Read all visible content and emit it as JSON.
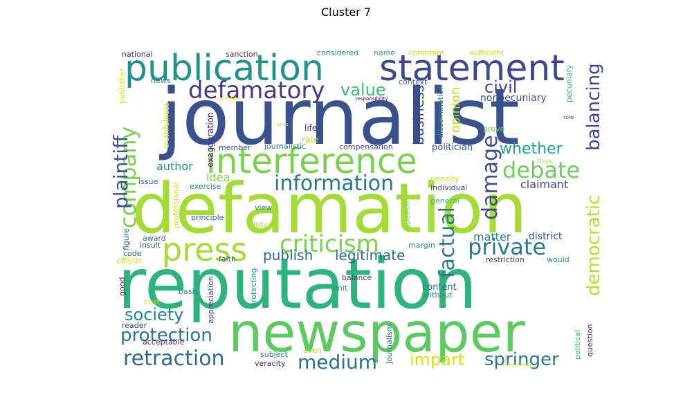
{
  "chart_data": {
    "type": "wordcloud",
    "title": "Cluster 7",
    "colormap": "viridis",
    "words": [
      {
        "text": "journalist",
        "color": "#3b518b"
      },
      {
        "text": "defamation",
        "color": "#a5db36"
      },
      {
        "text": "reputation",
        "color": "#2eb37c"
      },
      {
        "text": "newspaper",
        "color": "#5ec962"
      },
      {
        "text": "publication",
        "color": "#21918c"
      },
      {
        "text": "statement",
        "color": "#3e4989"
      },
      {
        "text": "interference",
        "color": "#7ad151"
      },
      {
        "text": "press",
        "color": "#a5db36"
      },
      {
        "text": "defamatory",
        "color": "#443983"
      },
      {
        "text": "criticism",
        "color": "#7ad151"
      },
      {
        "text": "information",
        "color": "#2a788e"
      },
      {
        "text": "debate",
        "color": "#6ccd5a"
      },
      {
        "text": "private",
        "color": "#2a788e"
      },
      {
        "text": "company",
        "color": "#7ad151"
      },
      {
        "text": "plaintiff",
        "color": "#3b528b"
      },
      {
        "text": "damage",
        "color": "#3e4a89"
      },
      {
        "text": "factual",
        "color": "#2a788e"
      },
      {
        "text": "balancing",
        "color": "#3e4989"
      },
      {
        "text": "democratic",
        "color": "#b5de2b"
      },
      {
        "text": "retraction",
        "color": "#31688e"
      },
      {
        "text": "medium",
        "color": "#2c728e"
      },
      {
        "text": "society",
        "color": "#26828e"
      },
      {
        "text": "protection",
        "color": "#2c728e"
      },
      {
        "text": "springer",
        "color": "#2a788e"
      },
      {
        "text": "impart",
        "color": "#d0e11c"
      },
      {
        "text": "value",
        "color": "#3fbc73"
      },
      {
        "text": "civil",
        "color": "#3e4989"
      },
      {
        "text": "whether",
        "color": "#21a685"
      },
      {
        "text": "legitimate",
        "color": "#31688e"
      },
      {
        "text": "publish",
        "color": "#31688e"
      },
      {
        "text": "business",
        "color": "#414487"
      },
      {
        "text": "opinion",
        "color": "#b5de2b"
      },
      {
        "text": "claimant",
        "color": "#3e4989"
      },
      {
        "text": "matter",
        "color": "#25858e"
      },
      {
        "text": "author",
        "color": "#21918c"
      },
      {
        "text": "idea",
        "color": "#7ad151"
      },
      {
        "text": "nonpecuniary",
        "color": "#3b528b"
      },
      {
        "text": "district",
        "color": "#3b528b"
      },
      {
        "text": "context",
        "color": "#31688e"
      },
      {
        "text": "content",
        "color": "#2c728e"
      },
      {
        "text": "politician",
        "color": "#3b528b"
      },
      {
        "text": "compensation",
        "color": "#3e4989"
      },
      {
        "text": "dissemination",
        "color": "#2a788e"
      },
      {
        "text": "considered",
        "color": "#21918c"
      },
      {
        "text": "name",
        "color": "#21a685"
      },
      {
        "text": "comment",
        "color": "#d0e11c"
      },
      {
        "text": "sufficient",
        "color": "#d0e11c"
      },
      {
        "text": "national",
        "color": "#482878"
      },
      {
        "text": "sanction",
        "color": "#482878"
      },
      {
        "text": "publisher",
        "color": "#d0e11c"
      },
      {
        "text": "news",
        "color": "#2a788e"
      },
      {
        "text": "truthfulness",
        "color": "#d0e11c"
      },
      {
        "text": "exaggeration",
        "color": "#482878"
      },
      {
        "text": "life",
        "color": "#482878"
      },
      {
        "text": "rate",
        "color": "#b5de2b"
      },
      {
        "text": "member",
        "color": "#3b528b"
      },
      {
        "text": "journalistic",
        "color": "#2a788e"
      },
      {
        "text": "prove",
        "color": "#7ad151"
      },
      {
        "text": "thus",
        "color": "#b5de2b"
      },
      {
        "text": "role",
        "color": "#3e4989"
      },
      {
        "text": "plus",
        "color": "#d0e11c"
      },
      {
        "text": "responsibility",
        "color": "#440154"
      },
      {
        "text": "confidence",
        "color": "#fde725"
      },
      {
        "text": "pecuniary",
        "color": "#35b779"
      },
      {
        "text": "issue",
        "color": "#31688e"
      },
      {
        "text": "exercise",
        "color": "#21918c"
      },
      {
        "text": "professional",
        "color": "#d0e11c"
      },
      {
        "text": "penalty",
        "color": "#d0e11c"
      },
      {
        "text": "individual",
        "color": "#3e4989"
      },
      {
        "text": "general",
        "color": "#35b779"
      },
      {
        "text": "view",
        "color": "#2a788e"
      },
      {
        "text": "principle",
        "color": "#31688e"
      },
      {
        "text": "duty",
        "color": "#b5de2b"
      },
      {
        "text": "speech",
        "color": "#7ad151"
      },
      {
        "text": "figure",
        "color": "#31688e"
      },
      {
        "text": "award",
        "color": "#31688e"
      },
      {
        "text": "insult",
        "color": "#3e4989"
      },
      {
        "text": "code",
        "color": "#31688e"
      },
      {
        "text": "official",
        "color": "#d0e11c"
      },
      {
        "text": "margin",
        "color": "#21918c"
      },
      {
        "text": "faith",
        "color": "#3b528b"
      },
      {
        "text": "restriction",
        "color": "#443983"
      },
      {
        "text": "would",
        "color": "#21918c"
      },
      {
        "text": "good",
        "color": "#482878"
      },
      {
        "text": "basis",
        "color": "#21918c"
      },
      {
        "text": "appreciation",
        "color": "#3e4989"
      },
      {
        "text": "protecting",
        "color": "#21918c"
      },
      {
        "text": "balance",
        "color": "#443983"
      },
      {
        "text": "limit",
        "color": "#21918c"
      },
      {
        "text": "without",
        "color": "#21918c"
      },
      {
        "text": "cost",
        "color": "#d0e11c"
      },
      {
        "text": "journalism",
        "color": "#31688e"
      },
      {
        "text": "reader",
        "color": "#3e4989"
      },
      {
        "text": "acceptable",
        "color": "#482878"
      },
      {
        "text": "even",
        "color": "#b5de2b"
      },
      {
        "text": "subject",
        "color": "#2a788e"
      },
      {
        "text": "veracity",
        "color": "#482878"
      },
      {
        "text": "political",
        "color": "#35b779"
      },
      {
        "text": "question",
        "color": "#482878"
      },
      {
        "text": "conformity",
        "color": "#b5de2b"
      }
    ]
  }
}
